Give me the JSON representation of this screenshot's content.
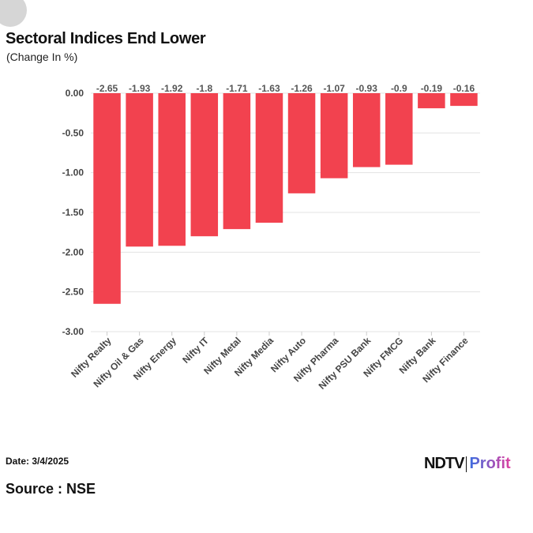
{
  "header": {
    "title": "Sectoral Indices End Lower",
    "subtitle": "(Change In %)"
  },
  "footer": {
    "date": "Date: 3/4/2025",
    "source": "Source : NSE",
    "logo_ndtv": "NDTV",
    "logo_profit": "Profit"
  },
  "colors": {
    "bar": "#f2424f"
  },
  "chart_data": {
    "type": "bar",
    "title": "Sectoral Indices End Lower",
    "subtitle": "(Change In %)",
    "categories": [
      "Nifty Realty",
      "Nifty Oil & Gas",
      "Nifty Energy",
      "Nifty IT",
      "Nifty Metal",
      "Nifty Media",
      "Nifty Auto",
      "Nifty Pharma",
      "Nifty PSU Bank",
      "Nifty FMCG",
      "Nifty Bank",
      "Nifty Finance"
    ],
    "values": [
      -2.65,
      -1.93,
      -1.92,
      -1.8,
      -1.71,
      -1.63,
      -1.26,
      -1.07,
      -0.93,
      -0.9,
      -0.19,
      -0.16
    ],
    "ylim": [
      -3,
      0
    ],
    "yticks": [
      "0.00",
      "-0.50",
      "-1.00",
      "-1.50",
      "-2.00",
      "-2.50",
      "-3.00"
    ],
    "grid": true
  }
}
